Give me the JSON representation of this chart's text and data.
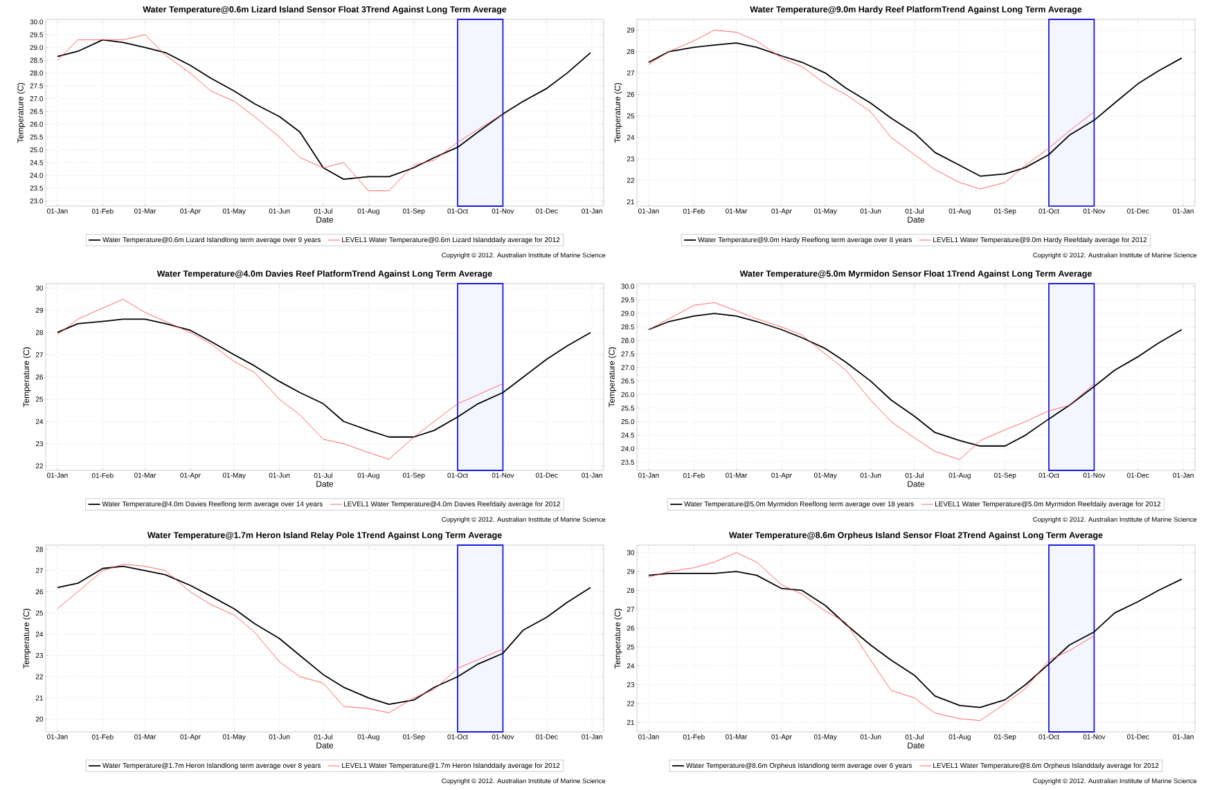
{
  "chart_data": [
    {
      "type": "line",
      "title": "Water Temperature@0.6m Lizard Island Sensor Float 3Trend Against Long Term Average",
      "xlabel": "Date",
      "ylabel": "Temperature (C)",
      "grid": true,
      "legend": "bottom",
      "x": [
        "2012-01-01",
        "2012-01-15",
        "2012-02-01",
        "2012-02-15",
        "2012-03-01",
        "2012-03-15",
        "2012-04-01",
        "2012-04-15",
        "2012-05-01",
        "2012-05-15",
        "2012-06-01",
        "2012-06-15",
        "2012-07-01",
        "2012-07-15",
        "2012-08-01",
        "2012-08-15",
        "2012-09-01",
        "2012-09-15",
        "2012-10-01",
        "2012-10-15",
        "2012-11-01",
        "2012-11-15",
        "2012-12-01",
        "2012-12-15",
        "2012-12-31"
      ],
      "xlim": [
        "2011-12-24",
        "2013-01-09"
      ],
      "xticks": [
        {
          "value": "2012-01-01",
          "label": "01-Jan"
        },
        {
          "value": "2012-02-01",
          "label": "01-Feb"
        },
        {
          "value": "2012-03-01",
          "label": "01-Mar"
        },
        {
          "value": "2012-04-01",
          "label": "01-Apr"
        },
        {
          "value": "2012-05-01",
          "label": "01-May"
        },
        {
          "value": "2012-06-01",
          "label": "01-Jun"
        },
        {
          "value": "2012-07-01",
          "label": "01-Jul"
        },
        {
          "value": "2012-08-01",
          "label": "01-Aug"
        },
        {
          "value": "2012-09-01",
          "label": "01-Sep"
        },
        {
          "value": "2012-10-01",
          "label": "01-Oct"
        },
        {
          "value": "2012-11-01",
          "label": "01-Nov"
        },
        {
          "value": "2012-12-01",
          "label": "01-Dec"
        },
        {
          "value": "2013-01-01",
          "label": "01-Jan"
        }
      ],
      "ylim": [
        22.8,
        30.1
      ],
      "yticks": [
        {
          "value": 23,
          "label": "23.0"
        },
        23.5,
        {
          "value": 24,
          "label": "24.0"
        },
        24.5,
        {
          "value": 25,
          "label": "25.0"
        },
        25.5,
        {
          "value": 26,
          "label": "26.0"
        },
        26.5,
        {
          "value": 27,
          "label": "27.0"
        },
        27.5,
        {
          "value": 28,
          "label": "28.0"
        },
        28.5,
        {
          "value": 29,
          "label": "29.0"
        },
        29.5,
        {
          "value": 30,
          "label": "30.0"
        }
      ],
      "series": [
        {
          "name": "Water Temperature@0.6m Lizard Islandlong term average over 9 years",
          "color": "#000000",
          "values": [
            28.65,
            28.85,
            29.3,
            29.2,
            29.0,
            28.8,
            28.3,
            27.8,
            27.3,
            26.8,
            26.3,
            25.7,
            24.3,
            23.85,
            23.95,
            23.95,
            24.3,
            24.7,
            25.1,
            25.7,
            26.4,
            26.9,
            27.4,
            28.0,
            28.8
          ]
        },
        {
          "name": "LEVEL1 Water Temperature@0.6m Lizard Islanddaily average for 2012",
          "color": "#ff4040",
          "values": [
            28.5,
            29.3,
            29.3,
            29.3,
            29.5,
            28.7,
            28.0,
            27.3,
            26.9,
            26.3,
            25.5,
            24.7,
            24.3,
            24.5,
            23.4,
            23.4,
            24.4,
            24.6,
            25.3,
            25.8,
            26.4,
            null,
            null,
            null,
            null
          ]
        }
      ],
      "bands": [
        {
          "axis": "x",
          "from": "2012-10-01",
          "to": "2012-11-01",
          "color": "#f4f6ff"
        }
      ],
      "annotations": [
        "Copyright © 2012. Australian Institute of Marine Science"
      ]
    },
    {
      "type": "line",
      "title": "Water Temperature@9.0m Hardy Reef PlatformTrend Against Long Term Average",
      "xlabel": "Date",
      "ylabel": "Temperature (C)",
      "grid": true,
      "legend": "bottom",
      "x": [
        "2012-01-01",
        "2012-01-15",
        "2012-02-01",
        "2012-02-15",
        "2012-03-01",
        "2012-03-15",
        "2012-04-01",
        "2012-04-15",
        "2012-05-01",
        "2012-05-15",
        "2012-06-01",
        "2012-06-15",
        "2012-07-01",
        "2012-07-15",
        "2012-08-01",
        "2012-08-15",
        "2012-09-01",
        "2012-09-15",
        "2012-10-01",
        "2012-10-15",
        "2012-11-01",
        "2012-11-15",
        "2012-12-01",
        "2012-12-15",
        "2012-12-31"
      ],
      "xlim": [
        "2011-12-24",
        "2013-01-09"
      ],
      "xticks": [
        {
          "value": "2012-01-01",
          "label": "01-Jan"
        },
        {
          "value": "2012-02-01",
          "label": "01-Feb"
        },
        {
          "value": "2012-03-01",
          "label": "01-Mar"
        },
        {
          "value": "2012-04-01",
          "label": "01-Apr"
        },
        {
          "value": "2012-05-01",
          "label": "01-May"
        },
        {
          "value": "2012-06-01",
          "label": "01-Jun"
        },
        {
          "value": "2012-07-01",
          "label": "01-Jul"
        },
        {
          "value": "2012-08-01",
          "label": "01-Aug"
        },
        {
          "value": "2012-09-01",
          "label": "01-Sep"
        },
        {
          "value": "2012-10-01",
          "label": "01-Oct"
        },
        {
          "value": "2012-11-01",
          "label": "01-Nov"
        },
        {
          "value": "2012-12-01",
          "label": "01-Dec"
        },
        {
          "value": "2013-01-01",
          "label": "01-Jan"
        }
      ],
      "ylim": [
        20.8,
        29.5
      ],
      "yticks": [
        21,
        22,
        23,
        24,
        25,
        26,
        27,
        28,
        29
      ],
      "series": [
        {
          "name": "Water Temperature@9.0m Hardy Reeflong term average over 8 years",
          "color": "#000000",
          "values": [
            27.5,
            28.0,
            28.2,
            28.3,
            28.4,
            28.2,
            27.8,
            27.5,
            27.0,
            26.3,
            25.6,
            24.9,
            24.2,
            23.3,
            22.7,
            22.2,
            22.3,
            22.6,
            23.2,
            24.1,
            24.8,
            25.6,
            26.5,
            27.1,
            27.7
          ]
        },
        {
          "name": "LEVEL1 Water Temperature@9.0m Hardy Reefdaily average for 2012",
          "color": "#ff4040",
          "values": [
            27.4,
            28.0,
            28.5,
            29.0,
            28.9,
            28.5,
            27.7,
            27.3,
            26.5,
            26.0,
            25.2,
            24.0,
            23.2,
            22.5,
            21.9,
            21.6,
            21.9,
            22.7,
            23.5,
            24.3,
            25.2,
            null,
            null,
            null,
            null
          ]
        }
      ],
      "bands": [
        {
          "axis": "x",
          "from": "2012-10-01",
          "to": "2012-11-01",
          "color": "#f4f6ff"
        }
      ],
      "annotations": [
        "Copyright © 2012. Australian Institute of Marine Science"
      ]
    },
    {
      "type": "line",
      "title": "Water Temperature@4.0m Davies Reef PlatformTrend Against Long Term Average",
      "xlabel": "Date",
      "ylabel": "Temperature (C)",
      "grid": true,
      "legend": "bottom",
      "x": [
        "2012-01-01",
        "2012-01-15",
        "2012-02-01",
        "2012-02-15",
        "2012-03-01",
        "2012-03-15",
        "2012-04-01",
        "2012-04-15",
        "2012-05-01",
        "2012-05-15",
        "2012-06-01",
        "2012-06-15",
        "2012-07-01",
        "2012-07-15",
        "2012-08-01",
        "2012-08-15",
        "2012-09-01",
        "2012-09-15",
        "2012-10-01",
        "2012-10-15",
        "2012-11-01",
        "2012-11-15",
        "2012-12-01",
        "2012-12-15",
        "2012-12-31"
      ],
      "xlim": [
        "2011-12-24",
        "2013-01-09"
      ],
      "xticks": [
        {
          "value": "2012-01-01",
          "label": "01-Jan"
        },
        {
          "value": "2012-02-01",
          "label": "01-Feb"
        },
        {
          "value": "2012-03-01",
          "label": "01-Mar"
        },
        {
          "value": "2012-04-01",
          "label": "01-Apr"
        },
        {
          "value": "2012-05-01",
          "label": "01-May"
        },
        {
          "value": "2012-06-01",
          "label": "01-Jun"
        },
        {
          "value": "2012-07-01",
          "label": "01-Jul"
        },
        {
          "value": "2012-08-01",
          "label": "01-Aug"
        },
        {
          "value": "2012-09-01",
          "label": "01-Sep"
        },
        {
          "value": "2012-10-01",
          "label": "01-Oct"
        },
        {
          "value": "2012-11-01",
          "label": "01-Nov"
        },
        {
          "value": "2012-12-01",
          "label": "01-Dec"
        },
        {
          "value": "2013-01-01",
          "label": "01-Jan"
        }
      ],
      "ylim": [
        21.8,
        30.2
      ],
      "yticks": [
        22,
        23,
        24,
        25,
        26,
        27,
        28,
        29,
        30
      ],
      "series": [
        {
          "name": "Water Temperature@4.0m Davies Reeflong term average over 14 years",
          "color": "#000000",
          "values": [
            28.0,
            28.4,
            28.5,
            28.6,
            28.6,
            28.4,
            28.1,
            27.6,
            27.0,
            26.5,
            25.8,
            25.3,
            24.8,
            24.0,
            23.6,
            23.3,
            23.3,
            23.6,
            24.2,
            24.8,
            25.3,
            26.0,
            26.8,
            27.4,
            28.0
          ]
        },
        {
          "name": "LEVEL1 Water Temperature@4.0m Davies Reefdaily average for 2012",
          "color": "#ff4040",
          "values": [
            27.9,
            28.6,
            29.1,
            29.5,
            28.9,
            28.5,
            28.0,
            27.5,
            26.7,
            26.2,
            25.0,
            24.3,
            23.2,
            23.0,
            22.6,
            22.3,
            23.3,
            24.0,
            24.8,
            25.2,
            25.7,
            null,
            null,
            null,
            null
          ]
        }
      ],
      "bands": [
        {
          "axis": "x",
          "from": "2012-10-01",
          "to": "2012-11-01",
          "color": "#f4f6ff"
        }
      ],
      "annotations": [
        "Copyright © 2012. Australian Institute of Marine Science"
      ]
    },
    {
      "type": "line",
      "title": "Water Temperature@5.0m Myrmidon Sensor Float 1Trend Against Long Term Average",
      "xlabel": "Date",
      "ylabel": "Temperature (C)",
      "grid": true,
      "legend": "bottom",
      "x": [
        "2012-01-01",
        "2012-01-15",
        "2012-02-01",
        "2012-02-15",
        "2012-03-01",
        "2012-03-15",
        "2012-04-01",
        "2012-04-15",
        "2012-05-01",
        "2012-05-15",
        "2012-06-01",
        "2012-06-15",
        "2012-07-01",
        "2012-07-15",
        "2012-08-01",
        "2012-08-15",
        "2012-09-01",
        "2012-09-15",
        "2012-10-01",
        "2012-10-15",
        "2012-11-01",
        "2012-11-15",
        "2012-12-01",
        "2012-12-15",
        "2012-12-31"
      ],
      "xlim": [
        "2011-12-24",
        "2013-01-09"
      ],
      "xticks": [
        {
          "value": "2012-01-01",
          "label": "01-Jan"
        },
        {
          "value": "2012-02-01",
          "label": "01-Feb"
        },
        {
          "value": "2012-03-01",
          "label": "01-Mar"
        },
        {
          "value": "2012-04-01",
          "label": "01-Apr"
        },
        {
          "value": "2012-05-01",
          "label": "01-May"
        },
        {
          "value": "2012-06-01",
          "label": "01-Jun"
        },
        {
          "value": "2012-07-01",
          "label": "01-Jul"
        },
        {
          "value": "2012-08-01",
          "label": "01-Aug"
        },
        {
          "value": "2012-09-01",
          "label": "01-Sep"
        },
        {
          "value": "2012-10-01",
          "label": "01-Oct"
        },
        {
          "value": "2012-11-01",
          "label": "01-Nov"
        },
        {
          "value": "2012-12-01",
          "label": "01-Dec"
        },
        {
          "value": "2013-01-01",
          "label": "01-Jan"
        }
      ],
      "ylim": [
        23.2,
        30.1
      ],
      "yticks": [
        23.5,
        {
          "value": 24,
          "label": "24.0"
        },
        24.5,
        {
          "value": 25,
          "label": "25.0"
        },
        25.5,
        {
          "value": 26,
          "label": "26.0"
        },
        26.5,
        {
          "value": 27,
          "label": "27.0"
        },
        27.5,
        {
          "value": 28,
          "label": "28.0"
        },
        28.5,
        {
          "value": 29,
          "label": "29.0"
        },
        29.5,
        {
          "value": 30,
          "label": "30.0"
        }
      ],
      "series": [
        {
          "name": "Water Temperature@5.0m Myrmidon Reeflong term average over 18 years",
          "color": "#000000",
          "values": [
            28.4,
            28.7,
            28.9,
            29.0,
            28.9,
            28.7,
            28.4,
            28.1,
            27.7,
            27.2,
            26.5,
            25.8,
            25.2,
            24.6,
            24.3,
            24.1,
            24.1,
            24.5,
            25.1,
            25.6,
            26.3,
            26.9,
            27.4,
            27.9,
            28.4
          ]
        },
        {
          "name": "LEVEL1 Water Temperature@5.0m Myrmidon Reefdaily average for 2012",
          "color": "#ff4040",
          "values": [
            28.4,
            28.8,
            29.3,
            29.4,
            29.1,
            28.8,
            28.5,
            28.2,
            27.5,
            26.9,
            25.8,
            25.0,
            24.4,
            23.9,
            23.6,
            24.3,
            24.7,
            25.0,
            25.4,
            25.6,
            26.4,
            null,
            null,
            null,
            null
          ]
        }
      ],
      "bands": [
        {
          "axis": "x",
          "from": "2012-10-01",
          "to": "2012-11-01",
          "color": "#f4f6ff"
        }
      ],
      "annotations": [
        "Copyright © 2012. Australian Institute of Marine Science"
      ]
    },
    {
      "type": "line",
      "title": "Water Temperature@1.7m Heron Island Relay Pole 1Trend Against Long Term Average",
      "xlabel": "Date",
      "ylabel": "Temperature (C)",
      "grid": true,
      "legend": "bottom",
      "x": [
        "2012-01-01",
        "2012-01-15",
        "2012-02-01",
        "2012-02-15",
        "2012-03-01",
        "2012-03-15",
        "2012-04-01",
        "2012-04-15",
        "2012-05-01",
        "2012-05-15",
        "2012-06-01",
        "2012-06-15",
        "2012-07-01",
        "2012-07-15",
        "2012-08-01",
        "2012-08-15",
        "2012-09-01",
        "2012-09-15",
        "2012-10-01",
        "2012-10-15",
        "2012-11-01",
        "2012-11-15",
        "2012-12-01",
        "2012-12-15",
        "2012-12-31"
      ],
      "xlim": [
        "2011-12-24",
        "2013-01-09"
      ],
      "xticks": [
        {
          "value": "2012-01-01",
          "label": "01-Jan"
        },
        {
          "value": "2012-02-01",
          "label": "01-Feb"
        },
        {
          "value": "2012-03-01",
          "label": "01-Mar"
        },
        {
          "value": "2012-04-01",
          "label": "01-Apr"
        },
        {
          "value": "2012-05-01",
          "label": "01-May"
        },
        {
          "value": "2012-06-01",
          "label": "01-Jun"
        },
        {
          "value": "2012-07-01",
          "label": "01-Jul"
        },
        {
          "value": "2012-08-01",
          "label": "01-Aug"
        },
        {
          "value": "2012-09-01",
          "label": "01-Sep"
        },
        {
          "value": "2012-10-01",
          "label": "01-Oct"
        },
        {
          "value": "2012-11-01",
          "label": "01-Nov"
        },
        {
          "value": "2012-12-01",
          "label": "01-Dec"
        },
        {
          "value": "2013-01-01",
          "label": "01-Jan"
        }
      ],
      "ylim": [
        19.4,
        28.2
      ],
      "yticks": [
        20,
        21,
        22,
        23,
        24,
        25,
        26,
        27,
        28
      ],
      "series": [
        {
          "name": "Water Temperature@1.7m Heron Islandlong term average over 8 years",
          "color": "#000000",
          "values": [
            26.2,
            26.4,
            27.1,
            27.2,
            27.0,
            26.8,
            26.3,
            25.8,
            25.2,
            24.5,
            23.8,
            23.0,
            22.1,
            21.5,
            21.0,
            20.7,
            20.9,
            21.5,
            22.0,
            22.6,
            23.1,
            24.2,
            24.8,
            25.5,
            26.2
          ]
        },
        {
          "name": "LEVEL1 Water Temperature@1.7m Heron Islanddaily average for 2012",
          "color": "#ff4040",
          "values": [
            25.2,
            26.0,
            27.0,
            27.3,
            27.2,
            27.0,
            26.0,
            25.4,
            24.9,
            24.1,
            22.7,
            22.0,
            21.7,
            20.6,
            20.5,
            20.3,
            21.0,
            21.4,
            22.4,
            22.8,
            23.3,
            null,
            null,
            null,
            null
          ]
        }
      ],
      "bands": [
        {
          "axis": "x",
          "from": "2012-10-01",
          "to": "2012-11-01",
          "color": "#f4f6ff"
        }
      ],
      "annotations": [
        "Copyright © 2012. Australian Institute of Marine Science"
      ]
    },
    {
      "type": "line",
      "title": "Water Temperature@8.6m Orpheus Island Sensor Float 2Trend Against Long Term Average",
      "xlabel": "Date",
      "ylabel": "Temperature (C)",
      "grid": true,
      "legend": "bottom",
      "x": [
        "2012-01-01",
        "2012-01-15",
        "2012-02-01",
        "2012-02-15",
        "2012-03-01",
        "2012-03-15",
        "2012-04-01",
        "2012-04-15",
        "2012-05-01",
        "2012-05-15",
        "2012-06-01",
        "2012-06-15",
        "2012-07-01",
        "2012-07-15",
        "2012-08-01",
        "2012-08-15",
        "2012-09-01",
        "2012-09-15",
        "2012-10-01",
        "2012-10-15",
        "2012-11-01",
        "2012-11-15",
        "2012-12-01",
        "2012-12-15",
        "2012-12-31"
      ],
      "xlim": [
        "2011-12-24",
        "2013-01-09"
      ],
      "xticks": [
        {
          "value": "2012-01-01",
          "label": "01-Jan"
        },
        {
          "value": "2012-02-01",
          "label": "01-Feb"
        },
        {
          "value": "2012-03-01",
          "label": "01-Mar"
        },
        {
          "value": "2012-04-01",
          "label": "01-Apr"
        },
        {
          "value": "2012-05-01",
          "label": "01-May"
        },
        {
          "value": "2012-06-01",
          "label": "01-Jun"
        },
        {
          "value": "2012-07-01",
          "label": "01-Jul"
        },
        {
          "value": "2012-08-01",
          "label": "01-Aug"
        },
        {
          "value": "2012-09-01",
          "label": "01-Sep"
        },
        {
          "value": "2012-10-01",
          "label": "01-Oct"
        },
        {
          "value": "2012-11-01",
          "label": "01-Nov"
        },
        {
          "value": "2012-12-01",
          "label": "01-Dec"
        },
        {
          "value": "2013-01-01",
          "label": "01-Jan"
        }
      ],
      "ylim": [
        20.5,
        30.4
      ],
      "yticks": [
        21,
        22,
        23,
        24,
        25,
        26,
        27,
        28,
        29,
        30
      ],
      "series": [
        {
          "name": "Water Temperature@8.6m Orpheus Islandlong term average over 6 years",
          "color": "#000000",
          "values": [
            28.8,
            28.9,
            28.9,
            28.9,
            29.0,
            28.8,
            28.1,
            28.0,
            27.2,
            26.2,
            25.1,
            24.3,
            23.5,
            22.4,
            21.9,
            21.8,
            22.2,
            23.0,
            24.1,
            25.1,
            25.8,
            26.8,
            27.4,
            28.0,
            28.6
          ]
        },
        {
          "name": "LEVEL1 Water Temperature@8.6m Orpheus Islanddaily average for 2012",
          "color": "#ff4040",
          "values": [
            28.7,
            29.0,
            29.2,
            29.5,
            30.0,
            29.5,
            28.3,
            27.8,
            26.9,
            26.3,
            24.3,
            22.7,
            22.3,
            21.5,
            21.2,
            21.1,
            22.0,
            22.8,
            24.3,
            24.8,
            25.6,
            null,
            null,
            null,
            null
          ]
        }
      ],
      "bands": [
        {
          "axis": "x",
          "from": "2012-10-01",
          "to": "2012-11-01",
          "color": "#f4f6ff"
        }
      ],
      "annotations": [
        "Copyright © 2012. Australian Institute of Marine Science"
      ]
    }
  ]
}
